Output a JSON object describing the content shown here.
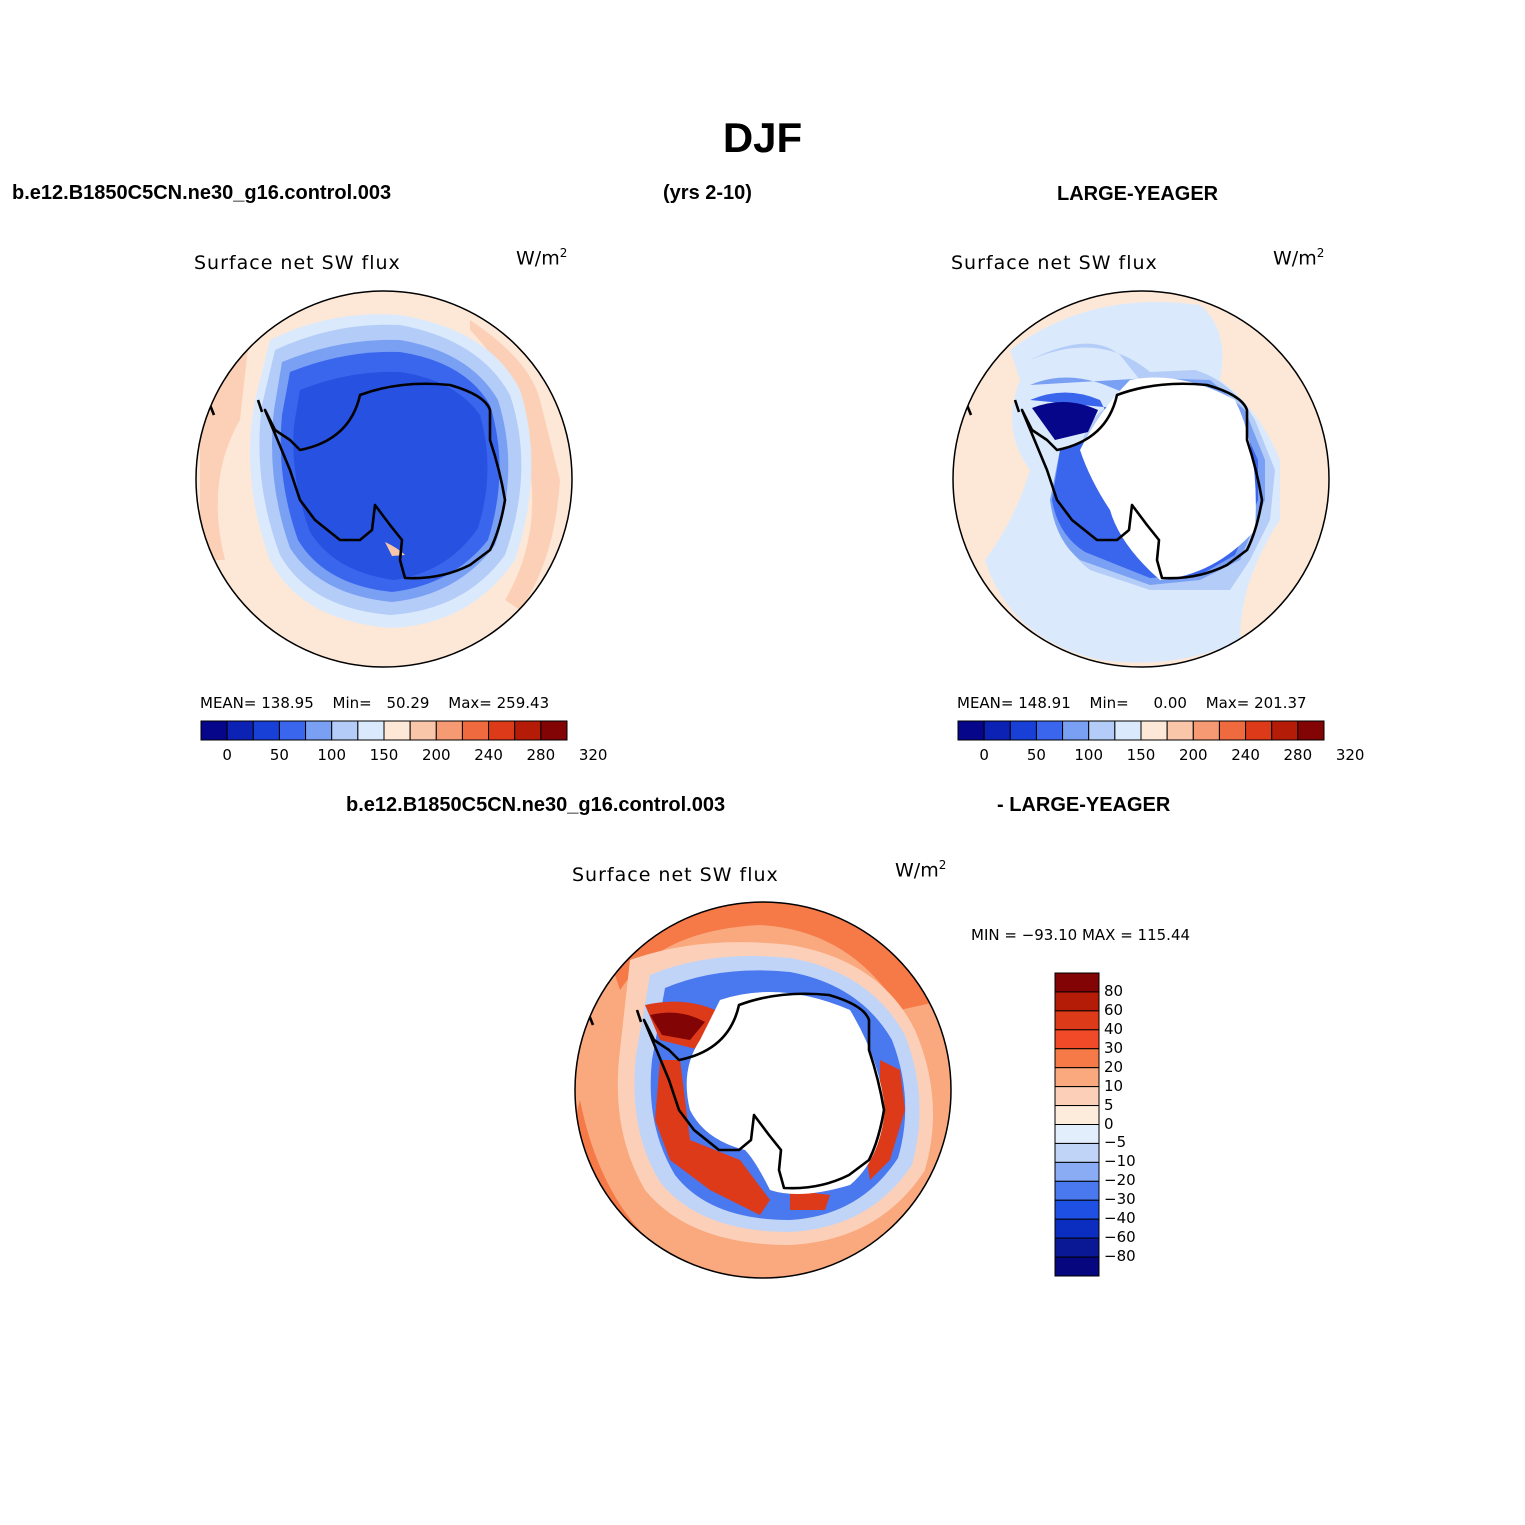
{
  "header": {
    "title": "DJF",
    "case_left": "b.e12.B1850C5CN.ne30_g16.control.003",
    "years": "(yrs 2-10)",
    "case_right": "LARGE-YEAGER"
  },
  "panels": [
    {
      "variable": "Surface net SW flux",
      "units": "W/m",
      "units_exp": "2",
      "stats": {
        "mean_label": "MEAN=",
        "mean": "138.95",
        "min_label": "Min=",
        "min": "50.29",
        "max_label": "Max=",
        "max": "259.43"
      }
    },
    {
      "variable": "Surface net SW flux",
      "units": "W/m",
      "units_exp": "2",
      "stats": {
        "mean_label": "MEAN=",
        "mean": "148.91",
        "min_label": "Min=",
        "min": "0.00",
        "max_label": "Max=",
        "max": "201.37"
      }
    }
  ],
  "colorbar": {
    "colors": [
      "#06068a",
      "#0c22b4",
      "#1840d6",
      "#3a66ee",
      "#7aa0f4",
      "#b4ccf8",
      "#daeafc",
      "#fde8d8",
      "#fac6aa",
      "#f59a72",
      "#f06a40",
      "#dc3a18",
      "#b41c08",
      "#820404"
    ],
    "labels": [
      "0",
      "50",
      "100",
      "150",
      "200",
      "240",
      "280",
      "320"
    ]
  },
  "difference": {
    "case_left": "b.e12.B1850C5CN.ne30_g16.control.003",
    "case_right": "- LARGE-YEAGER",
    "variable": "Surface net SW flux",
    "units": "W/m",
    "units_exp": "2",
    "minmax": "MIN = −93.10 MAX = 115.44",
    "colorbar": {
      "colors": [
        "#820404",
        "#b41c08",
        "#dc3a18",
        "#f04a28",
        "#f57a48",
        "#faa87e",
        "#fcd0b8",
        "#fdecdc",
        "#e2eefc",
        "#c0d4f8",
        "#8aacf4",
        "#4a78ee",
        "#1e50e4",
        "#0c2ec0",
        "#0a1896",
        "#06067e"
      ],
      "labels": [
        "80",
        "60",
        "40",
        "30",
        "20",
        "10",
        "5",
        "0",
        "−5",
        "−10",
        "−20",
        "−30",
        "−40",
        "−60",
        "−80"
      ]
    }
  }
}
